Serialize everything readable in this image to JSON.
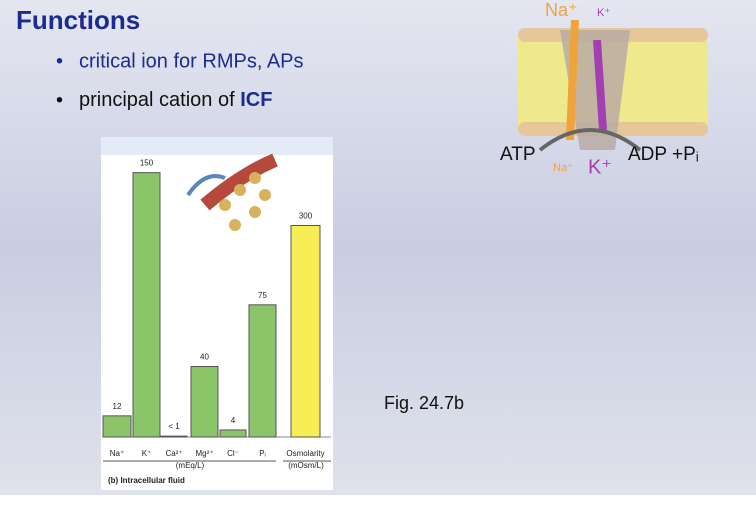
{
  "slide": {
    "title": "Functions",
    "bullets": [
      "critical ion for RMPs, APs",
      {
        "text": "principal cation of",
        "bold": "ICF"
      }
    ],
    "figure_label": "Fig. 24.7b",
    "pump": {
      "na_top": "Na⁺",
      "k_top": "K⁺",
      "atp": "ATP",
      "na_bottom": "Na⁺",
      "k_bottom": "K⁺",
      "adp": "ADP +Pᵢ"
    }
  },
  "chart_data": {
    "type": "bar",
    "categories": [
      "Na⁺",
      "K⁺",
      "Ca²⁺",
      "Mg²⁺",
      "Cl⁻",
      "Pᵢ",
      "Osmolarity"
    ],
    "series": [
      {
        "color": "#8cc46a",
        "values": [
          12,
          150,
          0.5,
          40,
          4,
          75,
          null
        ]
      },
      {
        "color": "#f7ee55",
        "axis": "y2",
        "values": [
          null,
          null,
          null,
          null,
          null,
          null,
          300
        ]
      }
    ],
    "value_labels": [
      "12",
      "150",
      "< 1",
      "40",
      "4",
      "75",
      "300"
    ],
    "ylim": [
      0,
      160
    ],
    "y2lim": [
      0,
      400
    ],
    "group_labels": [
      "(mEq/L)",
      "(mOsm/L)"
    ],
    "caption": "(b) Intracellular fluid"
  }
}
